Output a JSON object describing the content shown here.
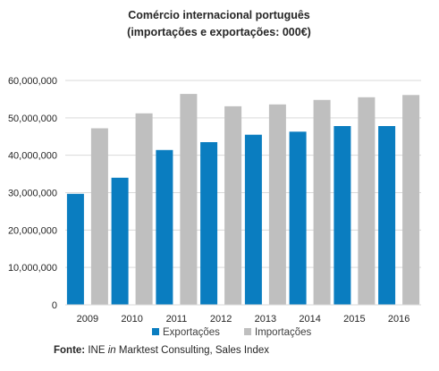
{
  "chart_data": {
    "type": "bar",
    "title": "Comércio internacional português",
    "subtitle": "(importações e exportações: 000€)",
    "categories": [
      "2009",
      "2010",
      "2011",
      "2012",
      "2013",
      "2014",
      "2015",
      "2016"
    ],
    "series": [
      {
        "name": "Exportações",
        "color": "#0a7dc0",
        "values": [
          29700000,
          34000000,
          41400000,
          43500000,
          45500000,
          46300000,
          47800000,
          47800000
        ]
      },
      {
        "name": "Importações",
        "color": "#bfbfbf",
        "values": [
          47200000,
          51200000,
          56400000,
          53100000,
          53600000,
          54800000,
          55500000,
          56100000
        ]
      }
    ],
    "ylim": [
      0,
      60000000
    ],
    "yticks": [
      0,
      10000000,
      20000000,
      30000000,
      40000000,
      50000000,
      60000000
    ],
    "ytick_labels": [
      "0",
      "10,000,000",
      "20,000,000",
      "30,000,000",
      "40,000,000",
      "50,000,000",
      "60,000,000"
    ],
    "grid": true,
    "legend_position": "bottom",
    "xlabel": "",
    "ylabel": ""
  },
  "source": {
    "label": "Fonte:",
    "prefix": "INE",
    "connector": "in",
    "rest": "Marktest Consulting, Sales Index"
  }
}
